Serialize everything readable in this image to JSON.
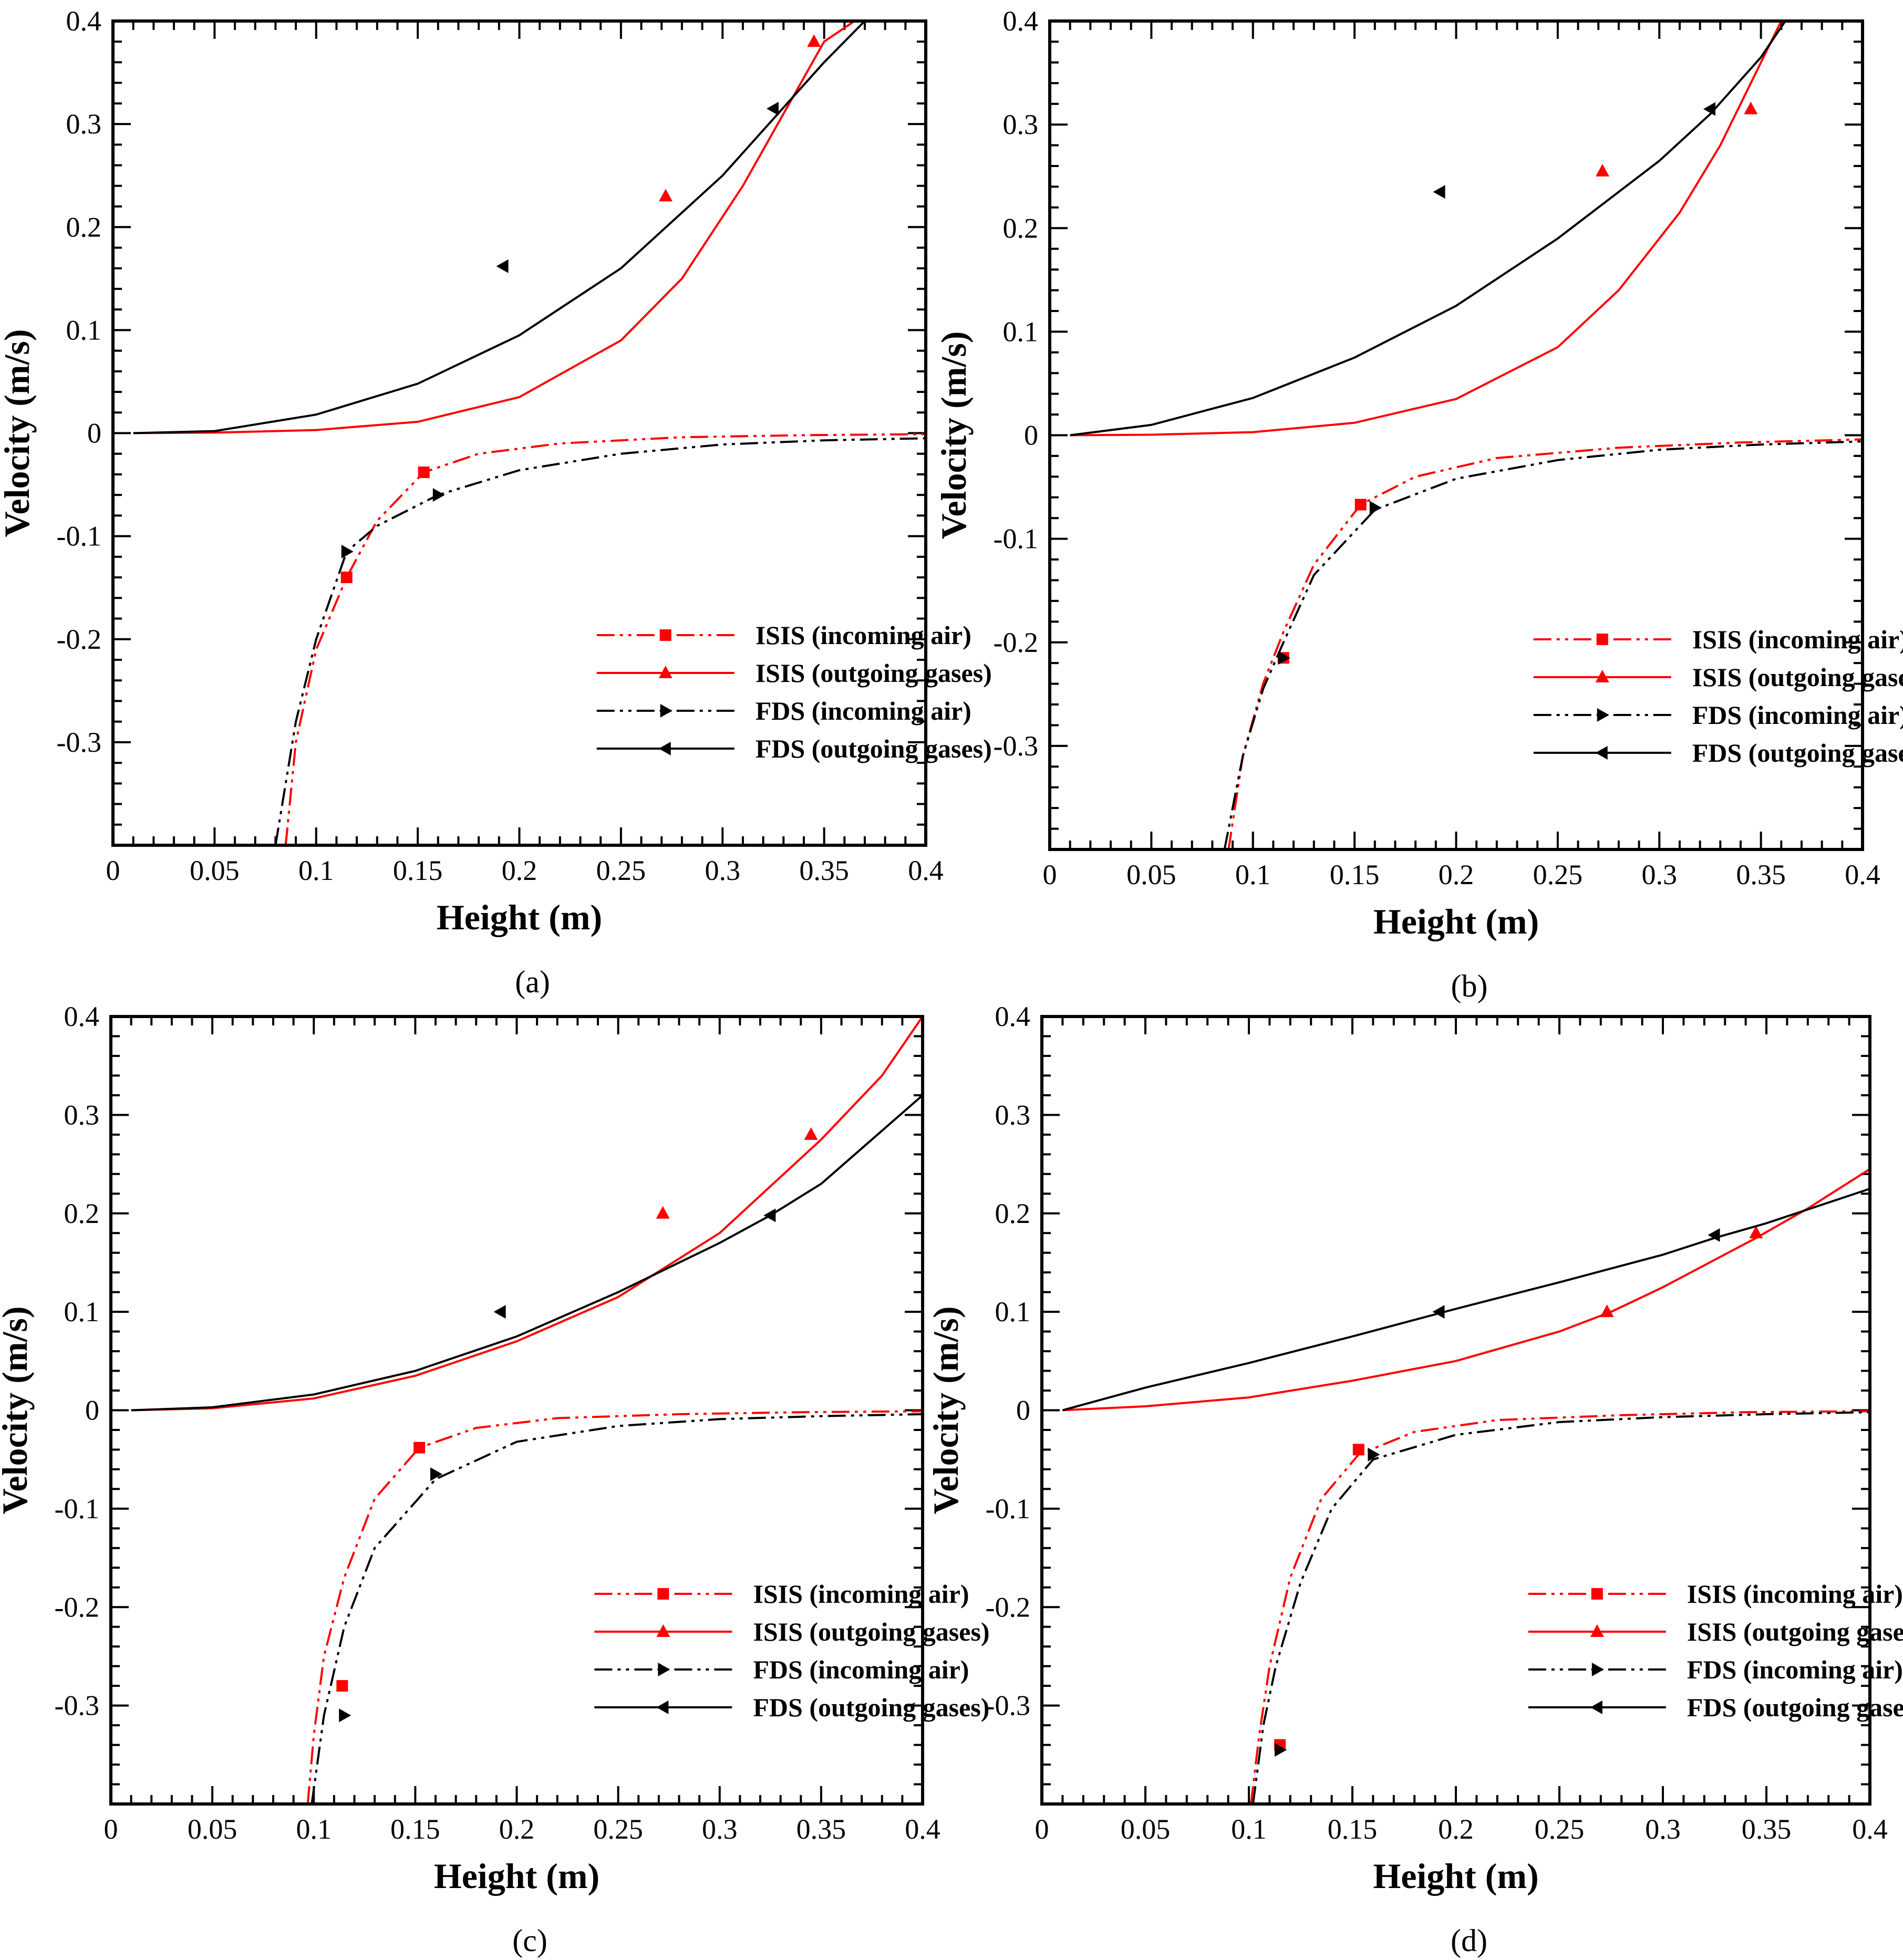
{
  "chart_data": [
    {
      "type": "line",
      "panel_label": "(a)",
      "xlabel": "Height (m)",
      "ylabel": "Velocity (m/s)",
      "xlim": [
        0,
        0.4
      ],
      "ylim": [
        -0.4,
        0.4
      ],
      "x_ticks": [
        "0",
        "0.05",
        "0.1",
        "0.15",
        "0.2",
        "0.25",
        "0.3",
        "0.35",
        "0.4"
      ],
      "y_ticks": [
        "0.4",
        "0.3",
        "0.2",
        "0.1",
        "0",
        "-0.1",
        "-0.2",
        "-0.3"
      ],
      "legend_position": "lower-right",
      "series": [
        {
          "name": "ISIS (incoming air)",
          "color": "#ff0000",
          "line": "dash-dot-dot",
          "marker": "square",
          "curve": [
            [
              0.085,
              -0.4
            ],
            [
              0.09,
              -0.3
            ],
            [
              0.1,
              -0.21
            ],
            [
              0.115,
              -0.14
            ],
            [
              0.13,
              -0.085
            ],
            [
              0.153,
              -0.038
            ],
            [
              0.18,
              -0.02
            ],
            [
              0.22,
              -0.01
            ],
            [
              0.28,
              -0.004
            ],
            [
              0.34,
              -0.002
            ],
            [
              0.4,
              -0.001
            ]
          ],
          "points": [
            [
              0.115,
              -0.14
            ],
            [
              0.153,
              -0.038
            ]
          ]
        },
        {
          "name": "ISIS (outgoing gases)",
          "color": "#ff0000",
          "line": "solid",
          "marker": "triangle-up",
          "curve": [
            [
              0.01,
              0
            ],
            [
              0.05,
              0.0005
            ],
            [
              0.1,
              0.003
            ],
            [
              0.15,
              0.011
            ],
            [
              0.2,
              0.035
            ],
            [
              0.25,
              0.09
            ],
            [
              0.28,
              0.15
            ],
            [
              0.31,
              0.24
            ],
            [
              0.33,
              0.31
            ],
            [
              0.35,
              0.38
            ],
            [
              0.365,
              0.4
            ]
          ],
          "points": [
            [
              0.272,
              0.23
            ],
            [
              0.345,
              0.38
            ]
          ]
        },
        {
          "name": "FDS (incoming air)",
          "color": "#000000",
          "line": "dash-dot-dot",
          "marker": "triangle-right",
          "curve": [
            [
              0.08,
              -0.4
            ],
            [
              0.09,
              -0.28
            ],
            [
              0.1,
              -0.2
            ],
            [
              0.115,
              -0.115
            ],
            [
              0.13,
              -0.09
            ],
            [
              0.16,
              -0.06
            ],
            [
              0.2,
              -0.036
            ],
            [
              0.25,
              -0.02
            ],
            [
              0.3,
              -0.011
            ],
            [
              0.35,
              -0.007
            ],
            [
              0.4,
              -0.005
            ]
          ],
          "points": [
            [
              0.115,
              -0.115
            ],
            [
              0.16,
              -0.06
            ]
          ]
        },
        {
          "name": "FDS (outgoing gases)",
          "color": "#000000",
          "line": "solid",
          "marker": "triangle-left",
          "curve": [
            [
              0.01,
              0
            ],
            [
              0.05,
              0.002
            ],
            [
              0.1,
              0.018
            ],
            [
              0.15,
              0.048
            ],
            [
              0.2,
              0.095
            ],
            [
              0.25,
              0.16
            ],
            [
              0.3,
              0.25
            ],
            [
              0.325,
              0.305
            ],
            [
              0.35,
              0.36
            ],
            [
              0.37,
              0.4
            ]
          ],
          "points": [
            [
              0.192,
              0.162
            ],
            [
              0.325,
              0.315
            ]
          ]
        }
      ]
    },
    {
      "type": "line",
      "panel_label": "(b)",
      "xlabel": "Height (m)",
      "ylabel": "Velocity (m/s)",
      "xlim": [
        0,
        0.4
      ],
      "ylim": [
        -0.4,
        0.4
      ],
      "x_ticks": [
        "0",
        "0.05",
        "0.1",
        "0.15",
        "0.2",
        "0.25",
        "0.3",
        "0.35",
        "0.4"
      ],
      "y_ticks": [
        "0.4",
        "0.3",
        "0.2",
        "0.1",
        "0",
        "-0.1",
        "-0.2",
        "-0.3"
      ],
      "legend_position": "lower-right",
      "series": [
        {
          "name": "ISIS (incoming air)",
          "color": "#ff0000",
          "line": "dash-dot-dot",
          "marker": "square",
          "curve": [
            [
              0.088,
              -0.4
            ],
            [
              0.095,
              -0.31
            ],
            [
              0.105,
              -0.24
            ],
            [
              0.115,
              -0.19
            ],
            [
              0.13,
              -0.125
            ],
            [
              0.153,
              -0.067
            ],
            [
              0.18,
              -0.04
            ],
            [
              0.22,
              -0.022
            ],
            [
              0.28,
              -0.012
            ],
            [
              0.34,
              -0.007
            ],
            [
              0.4,
              -0.004
            ]
          ],
          "points": [
            [
              0.115,
              -0.215
            ],
            [
              0.153,
              -0.067
            ]
          ]
        },
        {
          "name": "ISIS (outgoing gases)",
          "color": "#ff0000",
          "line": "solid",
          "marker": "triangle-up",
          "curve": [
            [
              0.01,
              0
            ],
            [
              0.05,
              0.0005
            ],
            [
              0.1,
              0.003
            ],
            [
              0.15,
              0.012
            ],
            [
              0.2,
              0.035
            ],
            [
              0.25,
              0.085
            ],
            [
              0.28,
              0.14
            ],
            [
              0.31,
              0.215
            ],
            [
              0.33,
              0.28
            ],
            [
              0.35,
              0.36
            ],
            [
              0.36,
              0.4
            ]
          ],
          "points": [
            [
              0.272,
              0.255
            ],
            [
              0.345,
              0.315
            ]
          ]
        },
        {
          "name": "FDS (incoming air)",
          "color": "#000000",
          "line": "dash-dot-dot",
          "marker": "triangle-right",
          "curve": [
            [
              0.086,
              -0.4
            ],
            [
              0.095,
              -0.31
            ],
            [
              0.105,
              -0.245
            ],
            [
              0.115,
              -0.2
            ],
            [
              0.13,
              -0.135
            ],
            [
              0.16,
              -0.072
            ],
            [
              0.2,
              -0.042
            ],
            [
              0.25,
              -0.024
            ],
            [
              0.3,
              -0.014
            ],
            [
              0.35,
              -0.009
            ],
            [
              0.4,
              -0.006
            ]
          ],
          "points": [
            [
              0.115,
              -0.215
            ],
            [
              0.16,
              -0.07
            ]
          ]
        },
        {
          "name": "FDS (outgoing gases)",
          "color": "#000000",
          "line": "solid",
          "marker": "triangle-left",
          "curve": [
            [
              0.01,
              0
            ],
            [
              0.05,
              0.01
            ],
            [
              0.1,
              0.036
            ],
            [
              0.15,
              0.075
            ],
            [
              0.2,
              0.125
            ],
            [
              0.25,
              0.19
            ],
            [
              0.3,
              0.265
            ],
            [
              0.325,
              0.31
            ],
            [
              0.35,
              0.365
            ],
            [
              0.362,
              0.4
            ]
          ],
          "points": [
            [
              0.192,
              0.235
            ],
            [
              0.325,
              0.315
            ]
          ]
        }
      ]
    },
    {
      "type": "line",
      "panel_label": "(c)",
      "xlabel": "Height (m)",
      "ylabel": "Velocity (m/s)",
      "xlim": [
        0,
        0.4
      ],
      "ylim": [
        -0.4,
        0.4
      ],
      "x_ticks": [
        "0",
        "0.05",
        "0.1",
        "0.15",
        "0.2",
        "0.25",
        "0.3",
        "0.35",
        "0.4"
      ],
      "y_ticks": [
        "0.4",
        "0.3",
        "0.2",
        "0.1",
        "0",
        "-0.1",
        "-0.2",
        "-0.3"
      ],
      "legend_position": "lower-right",
      "series": [
        {
          "name": "ISIS (incoming air)",
          "color": "#ff0000",
          "line": "dash-dot-dot",
          "marker": "square",
          "curve": [
            [
              0.097,
              -0.4
            ],
            [
              0.1,
              -0.33
            ],
            [
              0.105,
              -0.25
            ],
            [
              0.115,
              -0.17
            ],
            [
              0.13,
              -0.09
            ],
            [
              0.152,
              -0.038
            ],
            [
              0.18,
              -0.018
            ],
            [
              0.22,
              -0.008
            ],
            [
              0.28,
              -0.004
            ],
            [
              0.34,
              -0.002
            ],
            [
              0.4,
              -0.001
            ]
          ],
          "points": [
            [
              0.114,
              -0.28
            ],
            [
              0.152,
              -0.038
            ]
          ]
        },
        {
          "name": "ISIS (outgoing gases)",
          "color": "#ff0000",
          "line": "solid",
          "marker": "triangle-up",
          "curve": [
            [
              0.01,
              0
            ],
            [
              0.05,
              0.002
            ],
            [
              0.1,
              0.012
            ],
            [
              0.15,
              0.035
            ],
            [
              0.2,
              0.07
            ],
            [
              0.25,
              0.115
            ],
            [
              0.3,
              0.18
            ],
            [
              0.35,
              0.275
            ],
            [
              0.38,
              0.34
            ],
            [
              0.4,
              0.4
            ]
          ],
          "points": [
            [
              0.272,
              0.2
            ],
            [
              0.345,
              0.28
            ]
          ]
        },
        {
          "name": "FDS (incoming air)",
          "color": "#000000",
          "line": "dash-dot-dot",
          "marker": "triangle-right",
          "curve": [
            [
              0.099,
              -0.4
            ],
            [
              0.105,
              -0.31
            ],
            [
              0.115,
              -0.22
            ],
            [
              0.13,
              -0.14
            ],
            [
              0.16,
              -0.07
            ],
            [
              0.2,
              -0.032
            ],
            [
              0.25,
              -0.016
            ],
            [
              0.3,
              -0.009
            ],
            [
              0.35,
              -0.006
            ],
            [
              0.4,
              -0.004
            ]
          ],
          "points": [
            [
              0.115,
              -0.31
            ],
            [
              0.16,
              -0.065
            ]
          ]
        },
        {
          "name": "FDS (outgoing gases)",
          "color": "#000000",
          "line": "solid",
          "marker": "triangle-left",
          "curve": [
            [
              0.01,
              0
            ],
            [
              0.05,
              0.003
            ],
            [
              0.1,
              0.016
            ],
            [
              0.15,
              0.04
            ],
            [
              0.2,
              0.075
            ],
            [
              0.25,
              0.12
            ],
            [
              0.3,
              0.17
            ],
            [
              0.325,
              0.198
            ],
            [
              0.35,
              0.23
            ],
            [
              0.4,
              0.32
            ]
          ],
          "points": [
            [
              0.192,
              0.1
            ],
            [
              0.325,
              0.198
            ]
          ]
        }
      ]
    },
    {
      "type": "line",
      "panel_label": "(d)",
      "xlabel": "Height (m)",
      "ylabel": "Velocity (m/s)",
      "xlim": [
        0,
        0.4
      ],
      "ylim": [
        -0.4,
        0.4
      ],
      "x_ticks": [
        "0",
        "0.05",
        "0.1",
        "0.15",
        "0.2",
        "0.25",
        "0.3",
        "0.35",
        "0.4"
      ],
      "y_ticks": [
        "0.4",
        "0.3",
        "0.2",
        "0.1",
        "0",
        "-0.1",
        "-0.2",
        "-0.3"
      ],
      "legend_position": "lower-right",
      "series": [
        {
          "name": "ISIS (incoming air)",
          "color": "#ff0000",
          "line": "dash-dot-dot",
          "marker": "square",
          "curve": [
            [
              0.101,
              -0.4
            ],
            [
              0.105,
              -0.33
            ],
            [
              0.11,
              -0.26
            ],
            [
              0.12,
              -0.17
            ],
            [
              0.135,
              -0.09
            ],
            [
              0.153,
              -0.045
            ],
            [
              0.18,
              -0.022
            ],
            [
              0.22,
              -0.01
            ],
            [
              0.28,
              -0.005
            ],
            [
              0.34,
              -0.002
            ],
            [
              0.4,
              -0.001
            ]
          ],
          "points": [
            [
              0.115,
              -0.34
            ],
            [
              0.153,
              -0.04
            ]
          ]
        },
        {
          "name": "ISIS (outgoing gases)",
          "color": "#ff0000",
          "line": "solid",
          "marker": "triangle-up",
          "curve": [
            [
              0.01,
              0
            ],
            [
              0.05,
              0.004
            ],
            [
              0.1,
              0.013
            ],
            [
              0.15,
              0.03
            ],
            [
              0.2,
              0.05
            ],
            [
              0.25,
              0.08
            ],
            [
              0.275,
              0.1
            ],
            [
              0.3,
              0.125
            ],
            [
              0.345,
              0.175
            ],
            [
              0.37,
              0.205
            ],
            [
              0.4,
              0.245
            ]
          ],
          "points": [
            [
              0.273,
              0.1
            ],
            [
              0.345,
              0.18
            ]
          ]
        },
        {
          "name": "FDS (incoming air)",
          "color": "#000000",
          "line": "dash-dot-dot",
          "marker": "triangle-right",
          "curve": [
            [
              0.102,
              -0.4
            ],
            [
              0.107,
              -0.32
            ],
            [
              0.113,
              -0.26
            ],
            [
              0.125,
              -0.175
            ],
            [
              0.14,
              -0.1
            ],
            [
              0.16,
              -0.05
            ],
            [
              0.2,
              -0.025
            ],
            [
              0.25,
              -0.012
            ],
            [
              0.3,
              -0.007
            ],
            [
              0.35,
              -0.004
            ],
            [
              0.4,
              -0.002
            ]
          ],
          "points": [
            [
              0.115,
              -0.345
            ],
            [
              0.16,
              -0.045
            ]
          ]
        },
        {
          "name": "FDS (outgoing gases)",
          "color": "#000000",
          "line": "solid",
          "marker": "triangle-left",
          "curve": [
            [
              0.01,
              0
            ],
            [
              0.05,
              0.023
            ],
            [
              0.1,
              0.048
            ],
            [
              0.15,
              0.075
            ],
            [
              0.2,
              0.103
            ],
            [
              0.25,
              0.13
            ],
            [
              0.3,
              0.158
            ],
            [
              0.325,
              0.175
            ],
            [
              0.35,
              0.19
            ],
            [
              0.4,
              0.225
            ]
          ],
          "points": [
            [
              0.192,
              0.1
            ],
            [
              0.325,
              0.178
            ]
          ]
        }
      ]
    }
  ]
}
